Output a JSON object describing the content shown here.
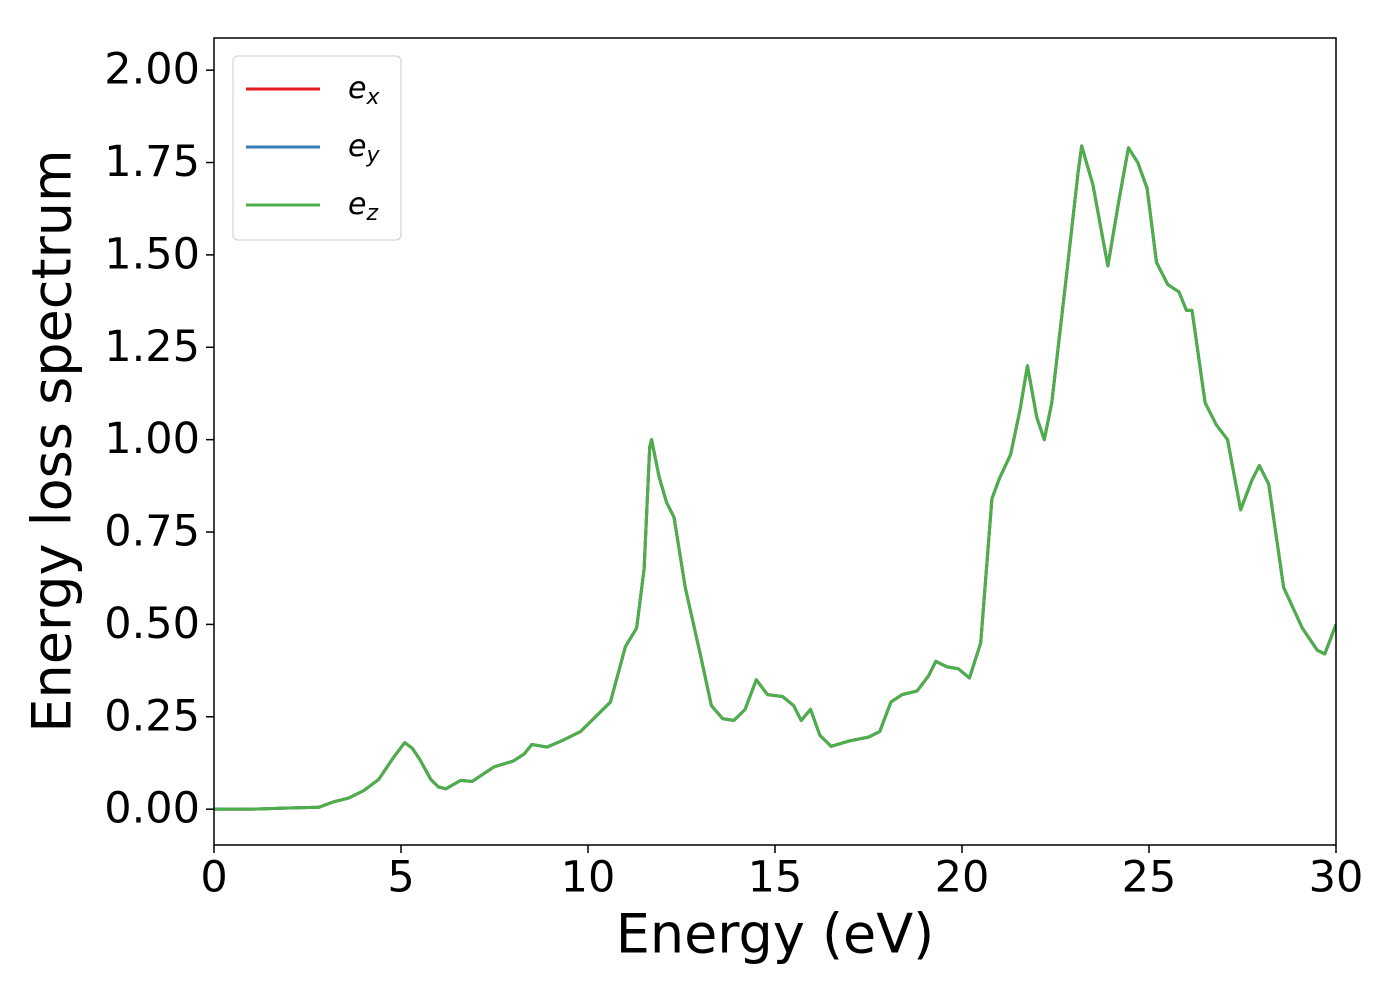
{
  "chart_data": {
    "type": "line",
    "xlabel": "Energy (eV)",
    "ylabel": "Energy loss spectrum",
    "x": [
      0,
      1,
      2,
      2.8,
      3.2,
      3.6,
      4.0,
      4.4,
      4.8,
      5.1,
      5.3,
      5.5,
      5.8,
      6.0,
      6.2,
      6.6,
      6.9,
      7.2,
      7.5,
      8.0,
      8.3,
      8.5,
      8.9,
      9.3,
      9.8,
      10.2,
      10.6,
      11.0,
      11.3,
      11.5,
      11.65,
      11.7,
      11.9,
      12.1,
      12.3,
      12.6,
      13.0,
      13.3,
      13.6,
      13.9,
      14.2,
      14.5,
      14.8,
      15.2,
      15.5,
      15.7,
      15.95,
      16.2,
      16.5,
      17.0,
      17.5,
      17.8,
      18.1,
      18.4,
      18.8,
      19.1,
      19.3,
      19.6,
      19.9,
      20.2,
      20.5,
      20.8,
      21.0,
      21.3,
      21.55,
      21.75,
      22.0,
      22.2,
      22.4,
      22.8,
      23.1,
      23.2,
      23.5,
      23.9,
      24.2,
      24.45,
      24.7,
      24.95,
      25.2,
      25.5,
      25.8,
      26.0,
      26.15,
      26.5,
      26.8,
      27.1,
      27.45,
      27.75,
      27.95,
      28.2,
      28.6,
      29.1,
      29.5,
      29.7,
      30
    ],
    "series": [
      {
        "name": "e_x",
        "color": "#e41a1c",
        "values": [
          0,
          0,
          0.003,
          0.005,
          0.02,
          0.03,
          0.05,
          0.08,
          0.14,
          0.18,
          0.165,
          0.135,
          0.08,
          0.06,
          0.055,
          0.078,
          0.075,
          0.095,
          0.115,
          0.13,
          0.15,
          0.175,
          0.168,
          0.185,
          0.21,
          0.25,
          0.29,
          0.44,
          0.49,
          0.65,
          0.98,
          1.0,
          0.9,
          0.83,
          0.79,
          0.6,
          0.42,
          0.28,
          0.245,
          0.24,
          0.27,
          0.35,
          0.31,
          0.305,
          0.28,
          0.24,
          0.27,
          0.2,
          0.17,
          0.185,
          0.195,
          0.21,
          0.29,
          0.31,
          0.32,
          0.36,
          0.4,
          0.385,
          0.38,
          0.355,
          0.45,
          0.84,
          0.895,
          0.96,
          1.08,
          1.2,
          1.06,
          1.0,
          1.1,
          1.45,
          1.72,
          1.795,
          1.69,
          1.47,
          1.65,
          1.79,
          1.75,
          1.68,
          1.48,
          1.42,
          1.4,
          1.35,
          1.35,
          1.1,
          1.04,
          1.0,
          0.81,
          0.89,
          0.93,
          0.88,
          0.6,
          0.49,
          0.43,
          0.42,
          0.5
        ]
      },
      {
        "name": "e_y",
        "color": "#377eb8",
        "values": [
          0,
          0,
          0.003,
          0.005,
          0.02,
          0.03,
          0.05,
          0.08,
          0.14,
          0.18,
          0.165,
          0.135,
          0.08,
          0.06,
          0.055,
          0.078,
          0.075,
          0.095,
          0.115,
          0.13,
          0.15,
          0.175,
          0.168,
          0.185,
          0.21,
          0.25,
          0.29,
          0.44,
          0.49,
          0.65,
          0.98,
          1.0,
          0.9,
          0.83,
          0.79,
          0.6,
          0.42,
          0.28,
          0.245,
          0.24,
          0.27,
          0.35,
          0.31,
          0.305,
          0.28,
          0.24,
          0.27,
          0.2,
          0.17,
          0.185,
          0.195,
          0.21,
          0.29,
          0.31,
          0.32,
          0.36,
          0.4,
          0.385,
          0.38,
          0.355,
          0.45,
          0.84,
          0.895,
          0.96,
          1.08,
          1.2,
          1.06,
          1.0,
          1.1,
          1.45,
          1.72,
          1.795,
          1.69,
          1.47,
          1.65,
          1.79,
          1.75,
          1.68,
          1.48,
          1.42,
          1.4,
          1.35,
          1.35,
          1.1,
          1.04,
          1.0,
          0.81,
          0.89,
          0.93,
          0.88,
          0.6,
          0.49,
          0.43,
          0.42,
          0.5
        ]
      },
      {
        "name": "e_z",
        "color": "#4daf4a",
        "values": [
          0,
          0,
          0.003,
          0.005,
          0.02,
          0.03,
          0.05,
          0.08,
          0.14,
          0.18,
          0.165,
          0.135,
          0.08,
          0.06,
          0.055,
          0.078,
          0.075,
          0.095,
          0.115,
          0.13,
          0.15,
          0.175,
          0.168,
          0.185,
          0.21,
          0.25,
          0.29,
          0.44,
          0.49,
          0.65,
          0.98,
          1.0,
          0.9,
          0.83,
          0.79,
          0.6,
          0.42,
          0.28,
          0.245,
          0.24,
          0.27,
          0.35,
          0.31,
          0.305,
          0.28,
          0.24,
          0.27,
          0.2,
          0.17,
          0.185,
          0.195,
          0.21,
          0.29,
          0.31,
          0.32,
          0.36,
          0.4,
          0.385,
          0.38,
          0.355,
          0.45,
          0.84,
          0.895,
          0.96,
          1.08,
          1.2,
          1.06,
          1.0,
          1.1,
          1.45,
          1.72,
          1.795,
          1.69,
          1.47,
          1.65,
          1.79,
          1.75,
          1.68,
          1.48,
          1.42,
          1.4,
          1.35,
          1.35,
          1.1,
          1.04,
          1.0,
          0.81,
          0.89,
          0.93,
          0.88,
          0.6,
          0.49,
          0.43,
          0.42,
          0.5
        ]
      }
    ],
    "xlim": [
      0,
      30
    ],
    "xticks": [
      0,
      5,
      10,
      15,
      20,
      25,
      30
    ],
    "ylim": [
      -0.097,
      2.087
    ],
    "yticks": [
      {
        "value": 0,
        "label": "0.00"
      },
      {
        "value": 0.25,
        "label": "0.25"
      },
      {
        "value": 0.5,
        "label": "0.50"
      },
      {
        "value": 0.75,
        "label": "0.75"
      },
      {
        "value": 1,
        "label": "1.00"
      },
      {
        "value": 1.25,
        "label": "1.25"
      },
      {
        "value": 1.5,
        "label": "1.50"
      },
      {
        "value": 1.75,
        "label": "1.75"
      },
      {
        "value": 2,
        "label": "2.00"
      }
    ],
    "grid": false,
    "legend": "upper left"
  }
}
